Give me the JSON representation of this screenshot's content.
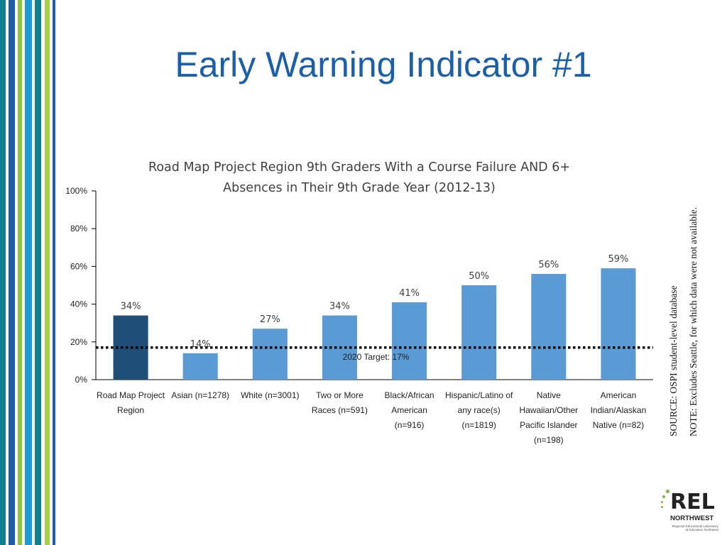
{
  "slide": {
    "title": "Early Warning Indicator #1",
    "note_source": "SOURCE: OSPI student-level database",
    "note_excludes": "NOTE: Excludes Seattle, for which data were not available."
  },
  "logo": {
    "name": "REL",
    "sub": "NORTHWEST",
    "tagline_1": "Regional Educational Laboratory",
    "tagline_2": "at Education Northwest"
  },
  "chart_data": {
    "type": "bar",
    "title_lines": [
      "Road Map Project Region 9th Graders With a Course Failure AND 6+",
      "Absences in Their 9th Grade Year (2012-13)"
    ],
    "categories": [
      [
        "Road Map Project",
        "Region"
      ],
      [
        "Asian (n=1278)"
      ],
      [
        "White (n=3001)"
      ],
      [
        "Two or More",
        "Races (n=591)"
      ],
      [
        "Black/African",
        "American",
        "(n=916)"
      ],
      [
        "Hispanic/Latino of",
        "any race(s)",
        "(n=1819)"
      ],
      [
        "Native",
        "Hawaiian/Other",
        "Pacific Islander",
        "(n=198)"
      ],
      [
        "American",
        "Indian/Alaskan",
        "Native (n=82)"
      ]
    ],
    "values": [
      34,
      14,
      27,
      34,
      41,
      50,
      56,
      59
    ],
    "value_labels": [
      "34%",
      "14%",
      "27%",
      "34%",
      "41%",
      "50%",
      "56%",
      "59%"
    ],
    "ylim": [
      0,
      100
    ],
    "yticks": [
      0,
      20,
      40,
      60,
      80,
      100
    ],
    "ytick_labels": [
      "0%",
      "20%",
      "40%",
      "60%",
      "80%",
      "100%"
    ],
    "target": {
      "value": 17,
      "label": "2020 Target: 17%"
    },
    "colors": {
      "highlight": "#1f4e79",
      "bar": "#5b9bd5",
      "target_line": "#000000"
    },
    "grid": false,
    "legend": "none"
  }
}
